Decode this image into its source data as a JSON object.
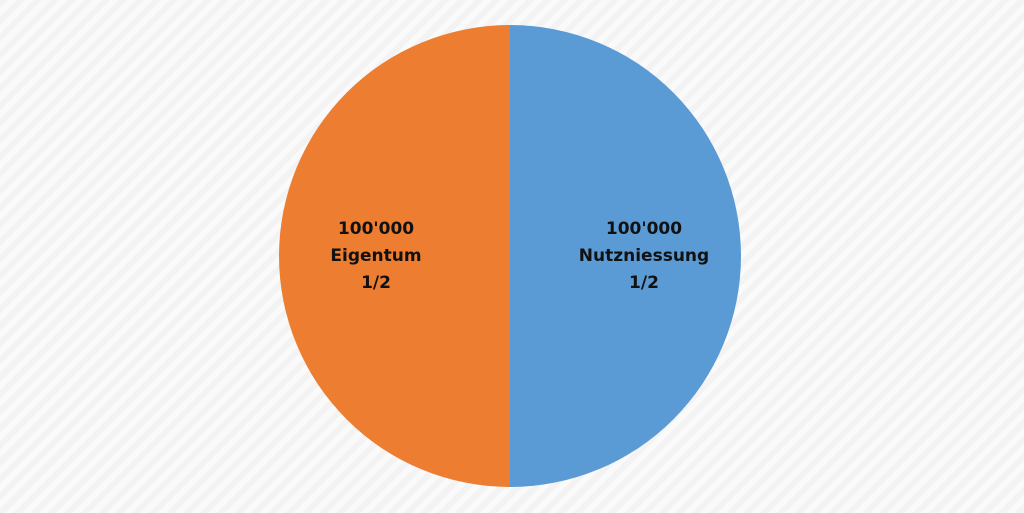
{
  "chart_data": {
    "type": "pie",
    "categories": [
      "Nutzniessung",
      "Eigentum"
    ],
    "values": [
      100000,
      100000
    ],
    "value_labels": [
      "100'000",
      "100'000"
    ],
    "share_labels": [
      "1/2",
      "1/2"
    ],
    "colors": [
      "#5b9bd5",
      "#ed7d31"
    ]
  }
}
